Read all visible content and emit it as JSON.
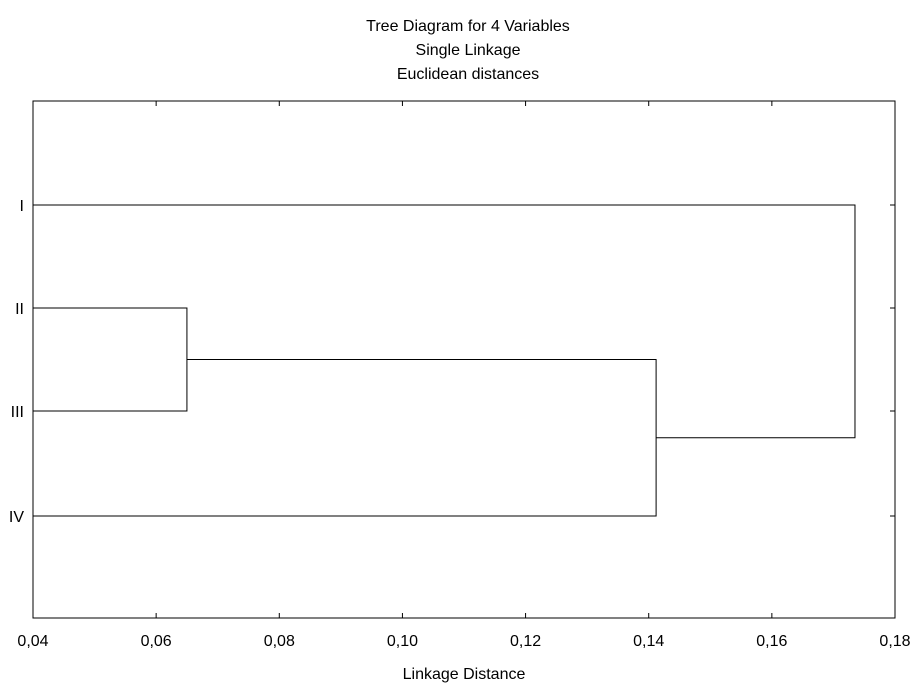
{
  "chart_data": {
    "type": "dendrogram",
    "title": [
      "Tree Diagram for 4   Variables",
      "Single Linkage",
      "Euclidean distances"
    ],
    "xlabel": "Linkage Distance",
    "ylabel": "",
    "xlim": [
      0.04,
      0.18
    ],
    "x_ticks": [
      "0,04",
      "0,06",
      "0,08",
      "0,10",
      "0,12",
      "0,14",
      "0,16",
      "0,18"
    ],
    "x_tick_values": [
      0.04,
      0.06,
      0.08,
      0.1,
      0.12,
      0.14,
      0.16,
      0.18
    ],
    "leaves": [
      "I",
      "II",
      "III",
      "IV"
    ],
    "merges": [
      {
        "left": "II",
        "right": "III",
        "distance": 0.065
      },
      {
        "left": "II+III",
        "right": "IV",
        "distance": 0.1412
      },
      {
        "left": "I",
        "right": "II+III+IV",
        "distance": 0.1735
      }
    ],
    "grid": false,
    "line_color": "#000000"
  }
}
